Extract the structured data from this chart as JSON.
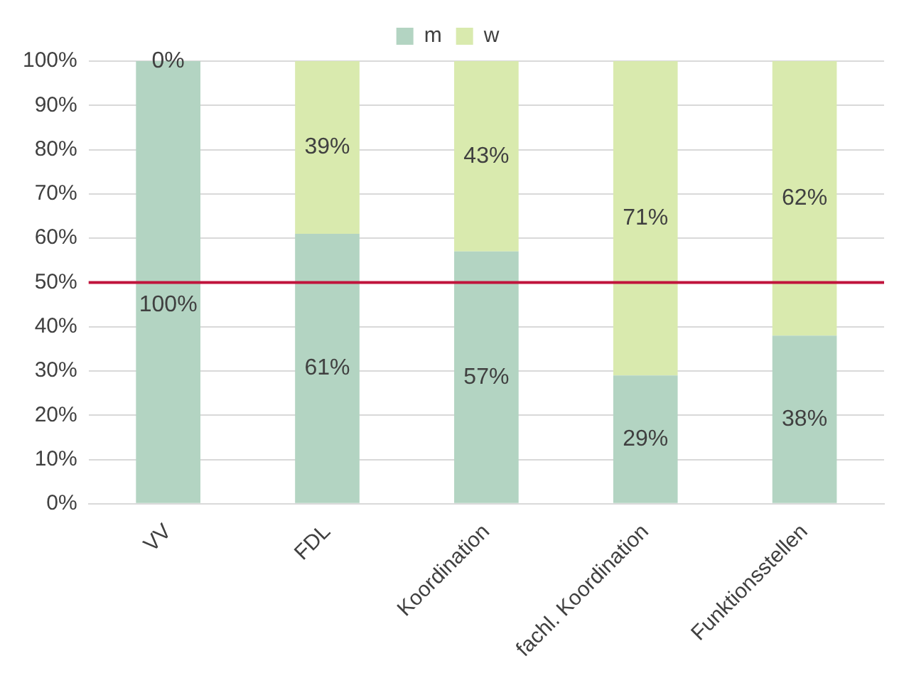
{
  "chart_data": {
    "type": "bar",
    "stacked": true,
    "categories": [
      "VV",
      "FDL",
      "Koordination",
      "fachl. Koordination",
      "Funktionsstellen"
    ],
    "series": [
      {
        "name": "m",
        "color": "#b3d4c2",
        "values": [
          100,
          61,
          57,
          29,
          38
        ],
        "value_labels": [
          "100%",
          "61%",
          "57%",
          "29%",
          "38%"
        ]
      },
      {
        "name": "w",
        "color": "#d9eaae",
        "values": [
          0,
          39,
          43,
          71,
          62
        ],
        "value_labels": [
          "0%",
          "39%",
          "43%",
          "71%",
          "62%"
        ]
      }
    ],
    "ylim": [
      0,
      100
    ],
    "yticks": [
      {
        "value": 0,
        "label": "0%"
      },
      {
        "value": 10,
        "label": "10%"
      },
      {
        "value": 20,
        "label": "20%"
      },
      {
        "value": 30,
        "label": "30%"
      },
      {
        "value": 40,
        "label": "40%"
      },
      {
        "value": 50,
        "label": "50%"
      },
      {
        "value": 60,
        "label": "60%"
      },
      {
        "value": 70,
        "label": "70%"
      },
      {
        "value": 80,
        "label": "80%"
      },
      {
        "value": 90,
        "label": "90%"
      },
      {
        "value": 100,
        "label": "100%"
      }
    ],
    "grid": "y",
    "legend": "top",
    "ref_lines": [
      {
        "axis": "y",
        "value": 50,
        "color": "#c0143c"
      }
    ]
  }
}
